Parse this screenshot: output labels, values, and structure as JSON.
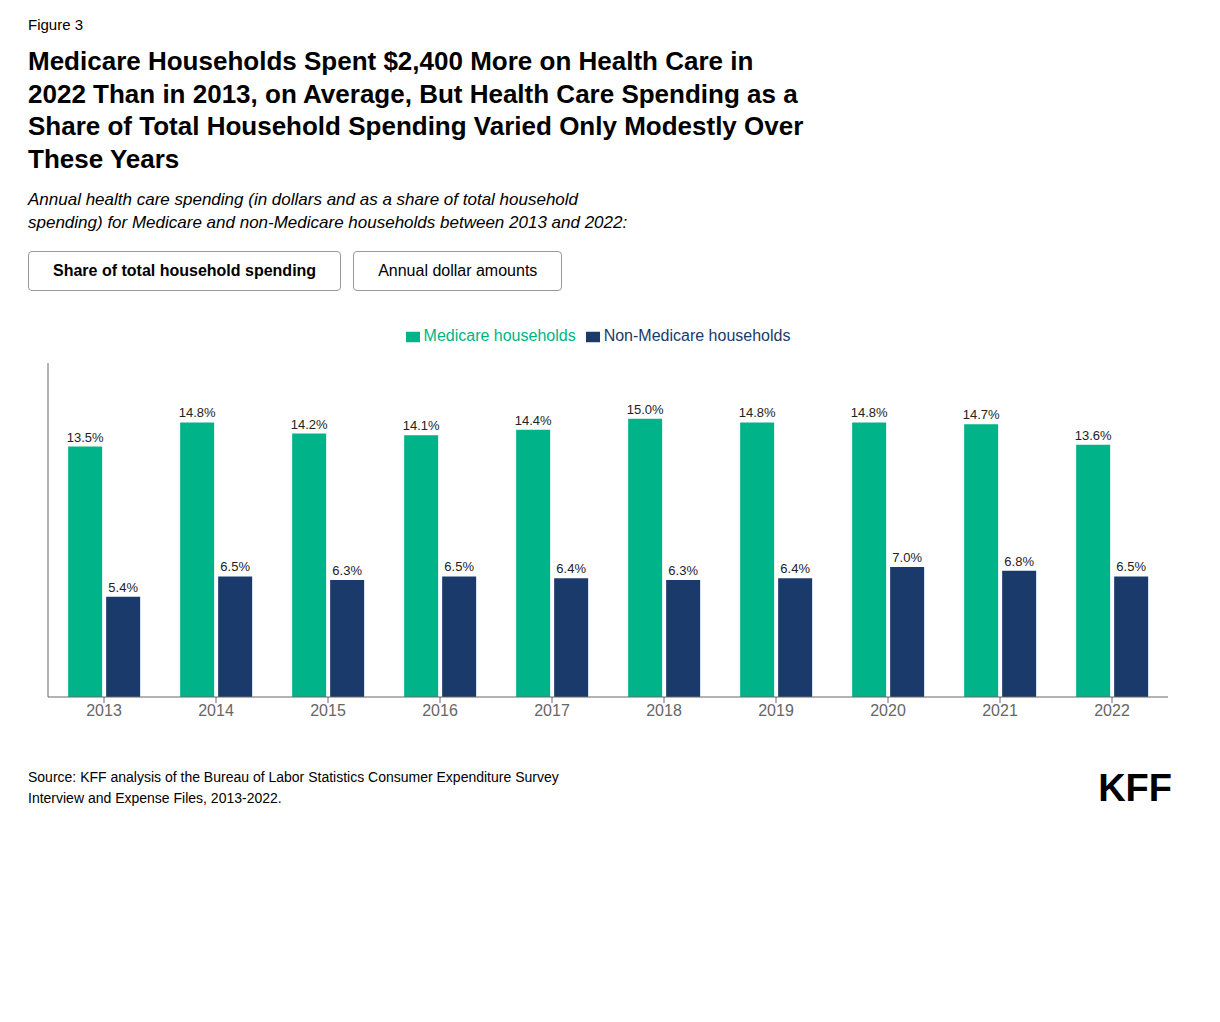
{
  "chart_data": {
    "type": "bar",
    "title": "Medicare Households Spent $2,400 More on Health Care in\n2022 Than in 2013, on Average, But Health Care Spending as a\nShare of Total Household Spending Varied Only Modestly Over\nThese Years",
    "subtitle": "Annual health care spending (in dollars and as a share of total household\nspending) for Medicare and non-Medicare households between 2013 and 2022:",
    "annotations": [
      "Figure 3",
      "Share of total household spending",
      "Annual dollar amounts",
      "Source: KFF analysis of the Bureau of Labor Statistics Consumer Expenditure Survey\nInterview and Expense Files, 2013-2022.",
      "KFF"
    ],
    "categories": [
      "2013",
      "2014",
      "2015",
      "2016",
      "2017",
      "2018",
      "2019",
      "2020",
      "2021",
      "2022"
    ],
    "series": [
      {
        "name": "Medicare households",
        "color": "#00b388",
        "values": [
          13.5,
          14.8,
          14.2,
          14.1,
          14.4,
          15.0,
          14.8,
          14.8,
          14.7,
          13.6
        ],
        "value_labels": [
          "13.5%",
          "14.8%",
          "14.2%",
          "14.1%",
          "14.4%",
          "15.0%",
          "14.8%",
          "14.8%",
          "14.7%",
          "13.6%"
        ]
      },
      {
        "name": "Non-Medicare households",
        "color": "#1a3a6b",
        "values": [
          5.4,
          6.5,
          6.3,
          6.5,
          6.4,
          6.3,
          6.4,
          7.0,
          6.8,
          6.5
        ],
        "value_labels": [
          "5.4%",
          "6.5%",
          "6.3%",
          "6.5%",
          "6.4%",
          "6.3%",
          "6.4%",
          "7.0%",
          "6.8%",
          "6.5%"
        ]
      }
    ],
    "ylim": [
      0,
      18
    ],
    "grid": false,
    "legend": "top",
    "data_labels": true,
    "tick_labels": "x"
  }
}
